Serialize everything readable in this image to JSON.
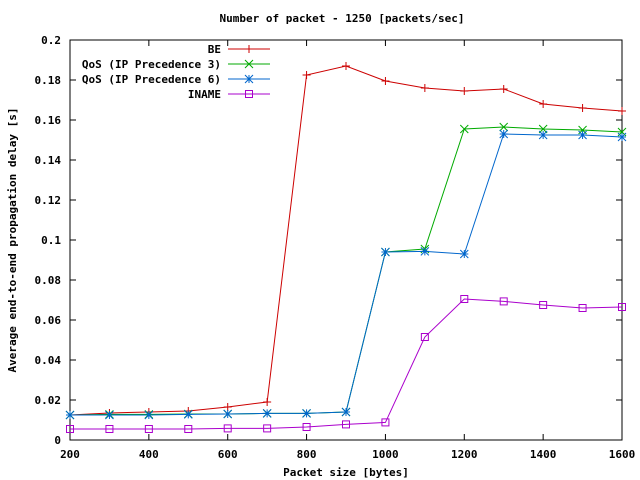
{
  "chart_data": {
    "type": "line",
    "title": "Number of packet - 1250 [packets/sec]",
    "xlabel": "Packet size [bytes]",
    "ylabel": "Average end-to-end propagation delay [s]",
    "xlim": [
      200,
      1600
    ],
    "ylim": [
      0,
      0.2
    ],
    "xticks": [
      "200",
      "400",
      "600",
      "800",
      "1000",
      "1200",
      "1400",
      "1600"
    ],
    "yticks": [
      "0",
      "0.02",
      "0.04",
      "0.06",
      "0.08",
      "0.1",
      "0.12",
      "0.14",
      "0.16",
      "0.18",
      "0.2"
    ],
    "grid": false,
    "legend_position": "top-left",
    "x": [
      200,
      300,
      400,
      500,
      600,
      700,
      800,
      900,
      1000,
      1100,
      1200,
      1300,
      1400,
      1500,
      1600
    ],
    "series": [
      {
        "name": "BE",
        "color": "#cc0000",
        "marker": "plus",
        "values": [
          0.0125,
          0.0135,
          0.014,
          0.0145,
          0.0165,
          0.019,
          0.1825,
          0.187,
          0.1795,
          0.176,
          0.1745,
          0.1755,
          0.168,
          0.166,
          0.1645
        ]
      },
      {
        "name": "QoS (IP Precedence 3)",
        "color": "#00aa00",
        "marker": "cross",
        "values": [
          0.0125,
          0.0128,
          0.0128,
          0.013,
          0.013,
          0.0133,
          0.0133,
          0.014,
          0.094,
          0.0955,
          0.1555,
          0.1565,
          0.1555,
          0.155,
          0.154
        ]
      },
      {
        "name": "QoS (IP Precedence 6)",
        "color": "#0066cc",
        "marker": "star",
        "values": [
          0.0125,
          0.0125,
          0.0125,
          0.0128,
          0.013,
          0.0133,
          0.0133,
          0.014,
          0.094,
          0.0943,
          0.093,
          0.153,
          0.1525,
          0.1525,
          0.1515
        ]
      },
      {
        "name": "INAME",
        "color": "#aa00cc",
        "marker": "square",
        "values": [
          0.0055,
          0.0055,
          0.0055,
          0.0055,
          0.0058,
          0.0058,
          0.0065,
          0.0078,
          0.0088,
          0.0515,
          0.0705,
          0.0693,
          0.0675,
          0.066,
          0.0665
        ]
      }
    ]
  }
}
